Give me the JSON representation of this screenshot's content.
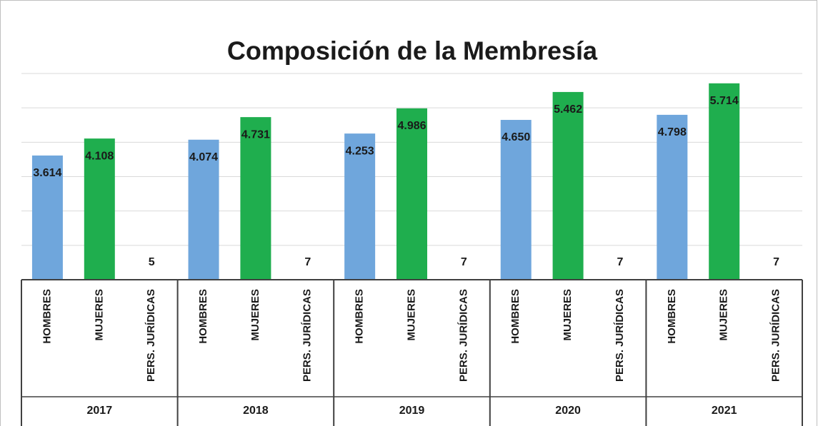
{
  "chart_data": {
    "type": "bar",
    "title": "Composición de la Membresía",
    "categories": [
      "2017",
      "2018",
      "2019",
      "2020",
      "2021"
    ],
    "subcategories": [
      "HOMBRES",
      "MUJERES",
      "PERS. JURÍDICAS"
    ],
    "series": [
      {
        "name": "HOMBRES",
        "color": "#6fa6dc",
        "values": [
          3614,
          4074,
          4253,
          4650,
          4798
        ],
        "value_labels": [
          "3.614",
          "4.074",
          "4.253",
          "4.650",
          "4.798"
        ]
      },
      {
        "name": "MUJERES",
        "color": "#1fae4e",
        "values": [
          4108,
          4731,
          4986,
          5462,
          5714
        ],
        "value_labels": [
          "4.108",
          "4.731",
          "4.986",
          "5.462",
          "5.714"
        ]
      },
      {
        "name": "PERS. JURÍDICAS",
        "color": "#a5a5a5",
        "values": [
          5,
          7,
          7,
          7,
          7
        ],
        "value_labels": [
          "5",
          "7",
          "7",
          "7",
          "7"
        ]
      }
    ],
    "ylim": [
      0,
      6000
    ],
    "yticks": [
      0,
      1000,
      2000,
      3000,
      4000,
      5000,
      6000
    ],
    "grid": true
  }
}
